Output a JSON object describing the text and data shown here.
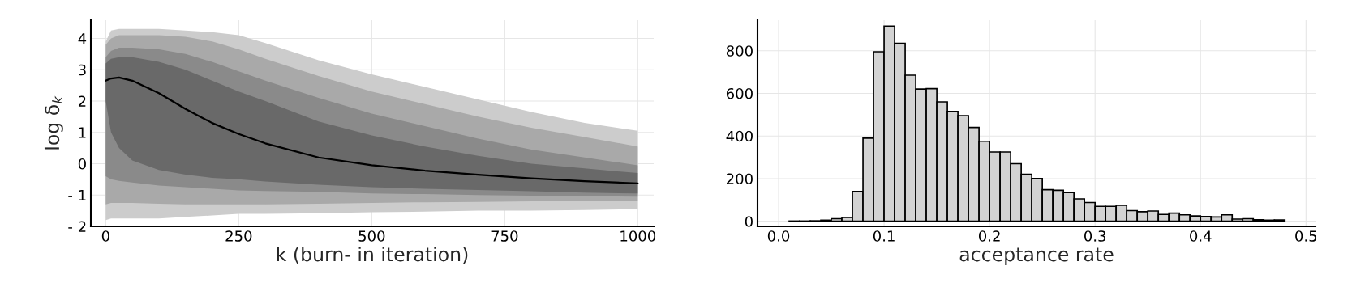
{
  "chart_data": [
    {
      "type": "line",
      "xlabel": "k (burn- in iteration)",
      "ylabel": "log δ$_{k}$",
      "x": [
        0,
        10,
        25,
        50,
        100,
        150,
        200,
        250,
        300,
        400,
        500,
        600,
        700,
        800,
        900,
        1000
      ],
      "series": [
        {
          "color": "#cccccc",
          "values": [
            null,
            null,
            null,
            null,
            null,
            null,
            null,
            null,
            null,
            null,
            null,
            null,
            null,
            null,
            null,
            null
          ],
          "lower": [
            -1.8,
            -1.75,
            -1.75,
            -1.75,
            -1.75,
            -1.7,
            -1.65,
            -1.6,
            -1.6,
            -1.58,
            -1.55,
            -1.53,
            -1.5,
            -1.5,
            -1.48,
            -1.45
          ],
          "upper": [
            3.9,
            4.25,
            4.3,
            4.3,
            4.3,
            4.25,
            4.2,
            4.1,
            3.85,
            3.3,
            2.85,
            2.45,
            2.05,
            1.65,
            1.3,
            1.05
          ]
        },
        {
          "color": "#a9a9a9",
          "values": [
            null,
            null,
            null,
            null,
            null,
            null,
            null,
            null,
            null,
            null,
            null,
            null,
            null,
            null,
            null,
            null
          ],
          "lower": [
            -1.3,
            -1.25,
            -1.25,
            -1.25,
            -1.28,
            -1.3,
            -1.3,
            -1.3,
            -1.3,
            -1.28,
            -1.25,
            -1.23,
            -1.22,
            -1.2,
            -1.2,
            -1.2
          ],
          "upper": [
            3.8,
            4.0,
            4.1,
            4.1,
            4.1,
            4.05,
            3.9,
            3.65,
            3.35,
            2.8,
            2.3,
            1.9,
            1.5,
            1.15,
            0.85,
            0.55
          ]
        },
        {
          "color": "#8a8a8a",
          "values": [
            null,
            null,
            null,
            null,
            null,
            null,
            null,
            null,
            null,
            null,
            null,
            null,
            null,
            null,
            null,
            null
          ],
          "lower": [
            -0.4,
            -0.5,
            -0.55,
            -0.6,
            -0.7,
            -0.75,
            -0.8,
            -0.85,
            -0.87,
            -0.9,
            -0.95,
            -0.97,
            -1.0,
            -1.02,
            -1.03,
            -1.05
          ],
          "upper": [
            3.4,
            3.6,
            3.7,
            3.7,
            3.65,
            3.5,
            3.25,
            2.95,
            2.65,
            2.1,
            1.6,
            1.2,
            0.8,
            0.45,
            0.2,
            -0.05
          ]
        },
        {
          "color": "#696969",
          "values": [
            null,
            null,
            null,
            null,
            null,
            null,
            null,
            null,
            null,
            null,
            null,
            null,
            null,
            null,
            null,
            null
          ],
          "lower": [
            2.0,
            1.0,
            0.5,
            0.1,
            -0.2,
            -0.35,
            -0.45,
            -0.5,
            -0.57,
            -0.67,
            -0.75,
            -0.8,
            -0.84,
            -0.88,
            -0.92,
            -0.95
          ],
          "upper": [
            3.2,
            3.35,
            3.4,
            3.4,
            3.25,
            3.0,
            2.65,
            2.3,
            2.0,
            1.35,
            0.9,
            0.55,
            0.25,
            0.0,
            -0.15,
            -0.3
          ]
        },
        {
          "color": "#000000",
          "values": [
            2.65,
            2.72,
            2.75,
            2.65,
            2.25,
            1.75,
            1.3,
            0.95,
            0.65,
            0.2,
            -0.05,
            -0.22,
            -0.35,
            -0.47,
            -0.56,
            -0.63
          ]
        }
      ],
      "xlim": [
        -28,
        1030
      ],
      "xticks": [
        0,
        250,
        500,
        750,
        1000
      ],
      "ylim": [
        -2.0,
        4.58
      ],
      "yticks": [
        {
          "value": -2,
          "label": "- 2"
        },
        {
          "value": -1,
          "label": "- 1"
        },
        0,
        1,
        2,
        3,
        4
      ],
      "grid": true,
      "legend": false
    },
    {
      "type": "histogram",
      "xlabel": "acceptance rate",
      "color": "#d3d3d3",
      "bins": [
        0.01,
        0.02,
        0.03,
        0.04,
        0.05,
        0.06,
        0.07,
        0.08,
        0.09,
        0.1,
        0.11,
        0.12,
        0.13,
        0.14,
        0.15,
        0.16,
        0.17,
        0.18,
        0.19,
        0.2,
        0.21,
        0.22,
        0.23,
        0.24,
        0.25,
        0.26,
        0.27,
        0.28,
        0.29,
        0.3,
        0.31,
        0.32,
        0.33,
        0.34,
        0.35,
        0.36,
        0.37,
        0.38,
        0.39,
        0.4,
        0.41,
        0.42,
        0.43,
        0.44,
        0.45,
        0.46,
        0.47,
        0.48
      ],
      "values": [
        1,
        1,
        2,
        5,
        12,
        18,
        140,
        390,
        795,
        915,
        835,
        685,
        620,
        622,
        560,
        515,
        495,
        440,
        375,
        325,
        325,
        270,
        220,
        200,
        148,
        145,
        135,
        105,
        88,
        70,
        70,
        75,
        50,
        45,
        48,
        32,
        38,
        30,
        25,
        22,
        20,
        30,
        10,
        12,
        7,
        5,
        6
      ],
      "xlim": [
        -0.02,
        0.509
      ],
      "xticks": [
        {
          "value": 0.0,
          "label": "0.0"
        },
        0.1,
        0.2,
        0.3,
        0.4,
        0.5
      ],
      "ylim": [
        -24,
        943
      ],
      "yticks": [
        0,
        200,
        400,
        600,
        800
      ],
      "grid": true,
      "legend": false
    }
  ]
}
